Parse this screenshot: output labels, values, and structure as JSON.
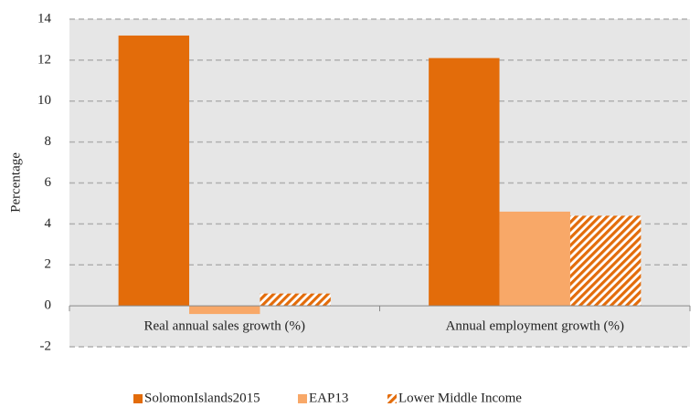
{
  "chart_data": {
    "type": "bar",
    "y_label": "Percentage",
    "categories": [
      "Real annual sales growth (%)",
      "Annual employment growth (%)"
    ],
    "series": [
      {
        "name": "SolomonIslands2015",
        "color": "#e36c0a",
        "values": [
          13.2,
          12.1
        ]
      },
      {
        "name": "EAP13",
        "color": "#f8a868",
        "values": [
          -0.4,
          4.6
        ]
      },
      {
        "name": "Lower Middle Income",
        "color": "#e36c0a",
        "pattern": "hatch",
        "values": [
          0.6,
          4.4
        ]
      }
    ],
    "ylim": [
      -2,
      14
    ],
    "yticks": [
      -2,
      0,
      2,
      4,
      6,
      8,
      10,
      12,
      14
    ],
    "grid": true,
    "legend": "bottom"
  }
}
